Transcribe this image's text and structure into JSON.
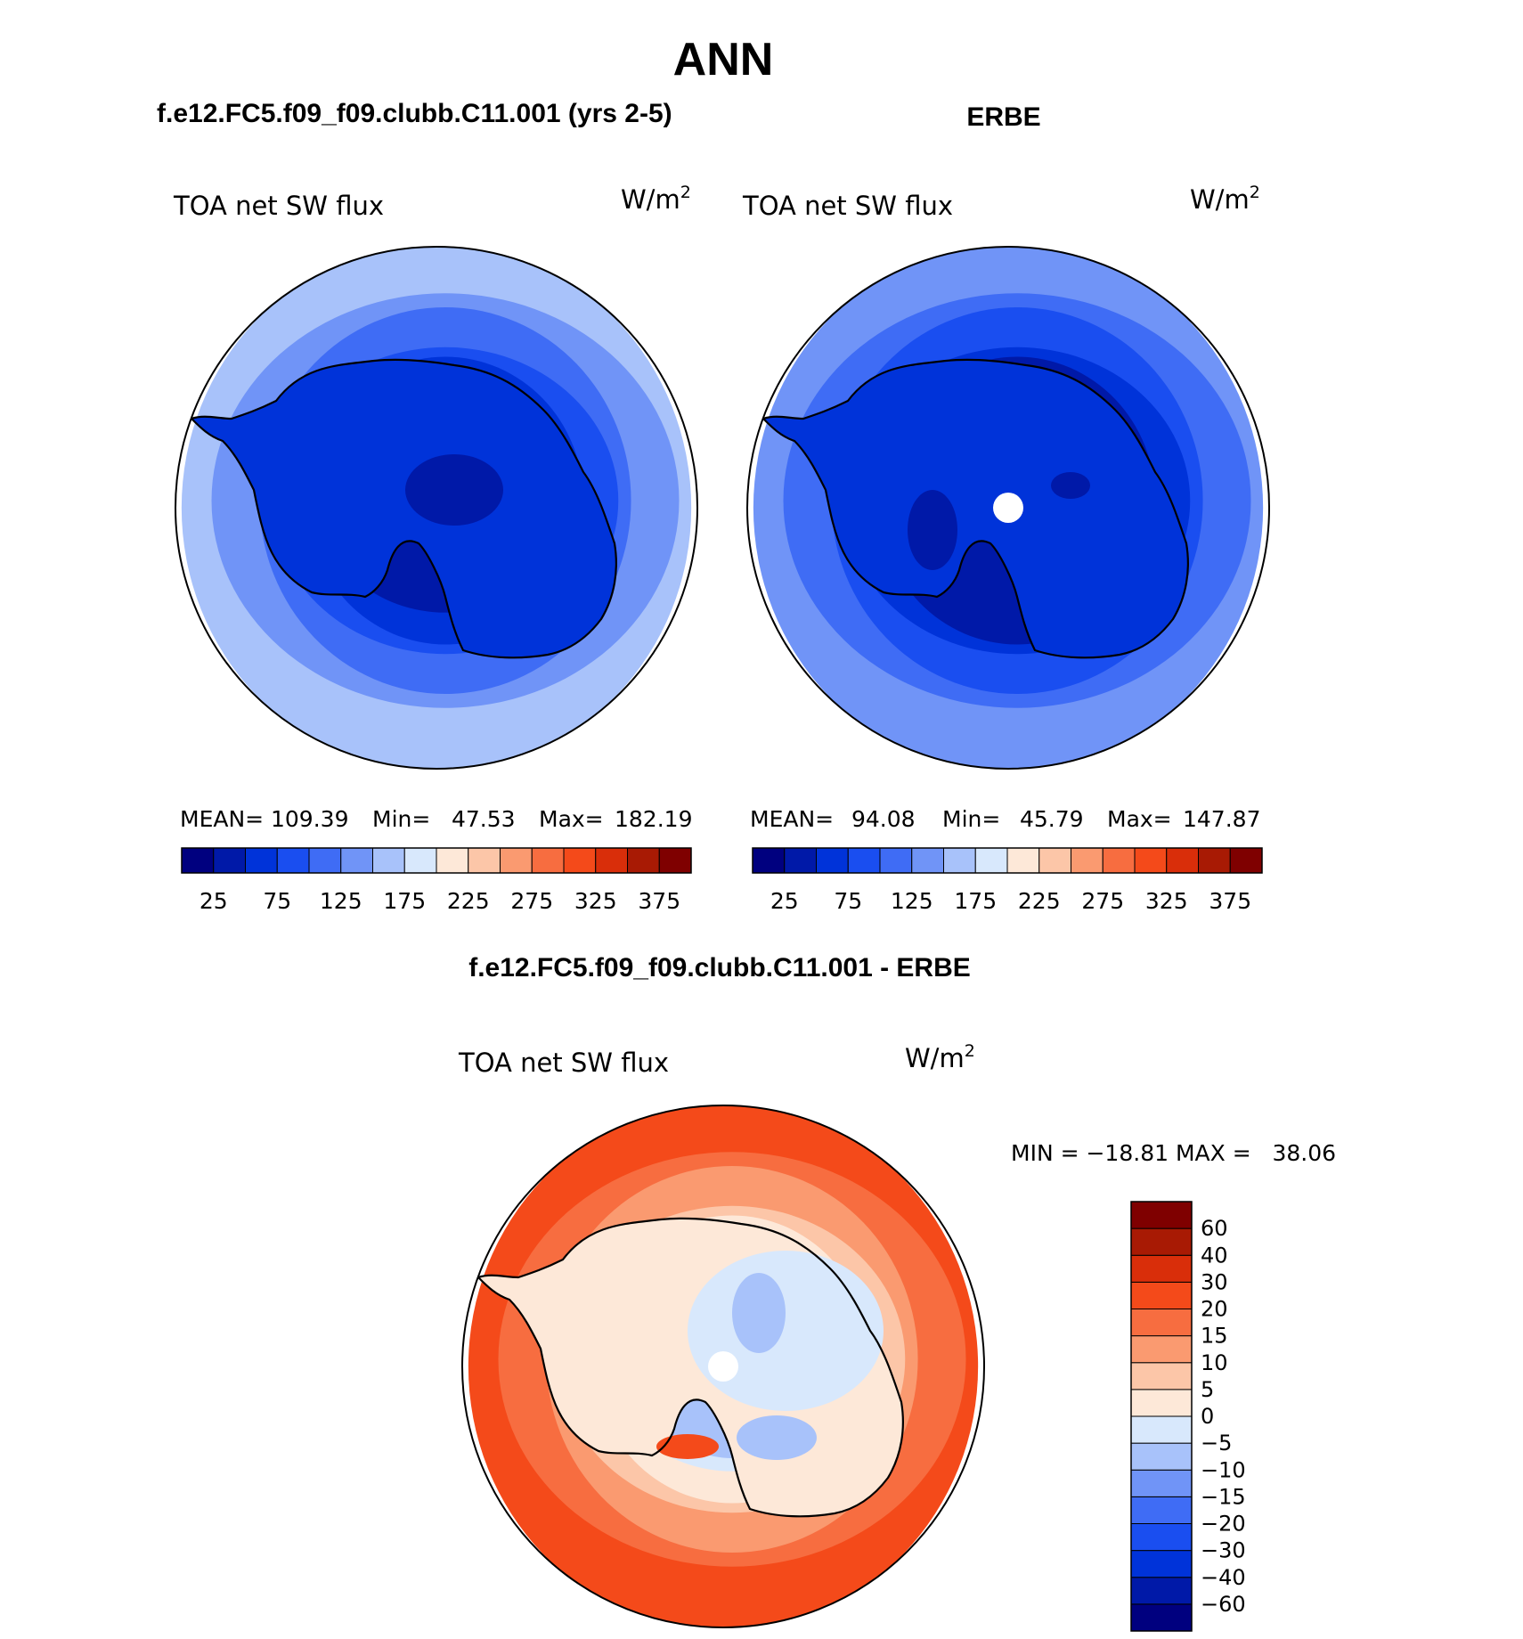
{
  "title": "ANN",
  "panels": [
    {
      "id": "model",
      "header": "f.e12.FC5.f09_f09.clubb.C11.001 (yrs 2-5)",
      "variable": "TOA net SW flux",
      "units_base": "W/m",
      "units_sup": "2",
      "stats": {
        "mean_label": "MEAN=",
        "mean": "109.39",
        "min_label": "Min=",
        "min": "47.53",
        "max_label": "Max=",
        "max": "182.19"
      },
      "hole": false
    },
    {
      "id": "obs",
      "header": "ERBE",
      "variable": "TOA net SW flux",
      "units_base": "W/m",
      "units_sup": "2",
      "stats": {
        "mean_label": "MEAN=",
        "mean": "94.08",
        "min_label": "Min=",
        "min": "45.79",
        "max_label": "Max=",
        "max": "147.87"
      },
      "hole": true
    }
  ],
  "abs_colorbar": {
    "colors": [
      "#00007f",
      "#0019a8",
      "#0033d9",
      "#1a4ef0",
      "#3f6cf5",
      "#7094f7",
      "#a8c2fa",
      "#d8e8fc",
      "#fde8d8",
      "#fcc6a8",
      "#fa9a70",
      "#f76d40",
      "#f44a1a",
      "#d92e0a",
      "#a81a04",
      "#7f0000"
    ],
    "labels": [
      "25",
      "75",
      "125",
      "175",
      "225",
      "275",
      "325",
      "375"
    ]
  },
  "diff": {
    "header": "f.e12.FC5.f09_f09.clubb.C11.001 - ERBE",
    "variable": "TOA net SW flux",
    "units_base": "W/m",
    "units_sup": "2",
    "minmax_text": "MIN = −18.81 MAX =   38.06",
    "hole": true,
    "colorbar": {
      "colors": [
        "#00007f",
        "#0019a8",
        "#0033d9",
        "#1a4ef0",
        "#3f6cf5",
        "#7094f7",
        "#a8c2fa",
        "#d8e8fc",
        "#fde8d8",
        "#fcc6a8",
        "#fa9a70",
        "#f76d40",
        "#f44a1a",
        "#d92e0a",
        "#a81a04",
        "#7f0000"
      ],
      "labels": [
        "−60",
        "−40",
        "−30",
        "−20",
        "−15",
        "−10",
        "−5",
        "0",
        "5",
        "10",
        "15",
        "20",
        "30",
        "40",
        "60"
      ]
    }
  },
  "map_palette": {
    "model": [
      "#a8c2fa",
      "#7094f7",
      "#3f6cf5",
      "#1a4ef0",
      "#0033d9",
      "#0019a8"
    ],
    "obs": [
      "#7094f7",
      "#3f6cf5",
      "#1a4ef0",
      "#0033d9",
      "#0019a8"
    ],
    "diff": [
      "#f44a1a",
      "#f76d40",
      "#fa9a70",
      "#fcc6a8",
      "#fde8d8",
      "#d8e8fc",
      "#a8c2fa"
    ]
  }
}
